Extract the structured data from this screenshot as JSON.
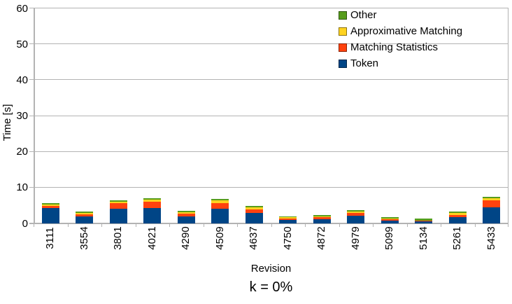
{
  "title": "k = 0%",
  "axes": {
    "y_label": "Time [s]",
    "x_label": "Revision"
  },
  "colors": {
    "token": "#004586",
    "matching_statistics": "#FF420E",
    "approximative_matching": "#FFD320",
    "other": "#579D1C",
    "grid": "#B3B3B3"
  },
  "legend": [
    {
      "label": "Other",
      "color": "#579D1C"
    },
    {
      "label": "Approximative Matching",
      "color": "#FFD320"
    },
    {
      "label": "Matching Statistics",
      "color": "#FF420E"
    },
    {
      "label": "Token",
      "color": "#004586"
    }
  ],
  "chart_data": {
    "type": "bar",
    "stacked": true,
    "title": "k = 0%",
    "xlabel": "Revision",
    "ylabel": "Time [s]",
    "ylim": [
      0,
      60
    ],
    "ytick_interval": 10,
    "yticks": [
      0,
      10,
      20,
      30,
      40,
      50,
      60
    ],
    "grid": true,
    "legend_position": "top-right-inside",
    "categories": [
      "3111",
      "3554",
      "3801",
      "4021",
      "4290",
      "4509",
      "4637",
      "4750",
      "4872",
      "4979",
      "5099",
      "5134",
      "5261",
      "5433"
    ],
    "series": [
      {
        "name": "Token",
        "color": "#004586",
        "values": [
          4.3,
          1.9,
          4.1,
          4.3,
          2.0,
          4.1,
          3.0,
          0.9,
          1.1,
          2.1,
          0.7,
          0.5,
          1.8,
          4.6
        ]
      },
      {
        "name": "Matching Statistics",
        "color": "#FF420E",
        "values": [
          0.6,
          0.65,
          1.5,
          1.8,
          0.8,
          1.5,
          1.0,
          0.5,
          0.6,
          0.8,
          0.45,
          0.2,
          0.65,
          1.9
        ]
      },
      {
        "name": "Approximative Matching",
        "color": "#FFD320",
        "values": [
          0.4,
          0.35,
          0.5,
          0.5,
          0.3,
          0.8,
          0.45,
          0.3,
          0.3,
          0.35,
          0.3,
          0.1,
          0.45,
          0.5
        ]
      },
      {
        "name": "Other",
        "color": "#579D1C",
        "values": [
          0.4,
          0.35,
          0.4,
          0.4,
          0.5,
          0.5,
          0.45,
          0.35,
          0.35,
          0.5,
          0.4,
          0.5,
          0.5,
          0.5
        ]
      }
    ]
  }
}
